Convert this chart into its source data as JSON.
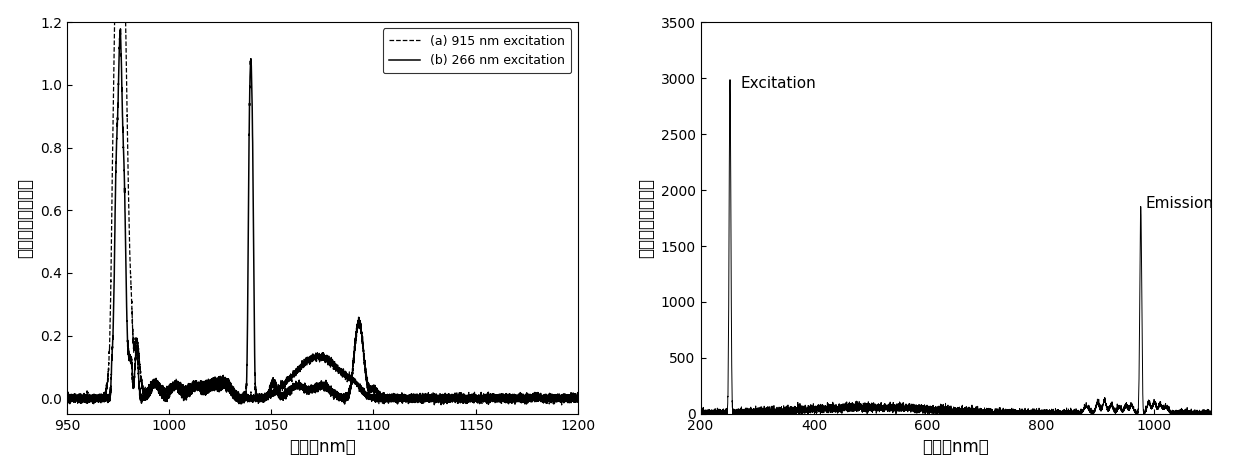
{
  "plot1": {
    "xlim": [
      950,
      1200
    ],
    "ylim": [
      -0.05,
      1.2
    ],
    "xticks": [
      950,
      1000,
      1050,
      1100,
      1150,
      1200
    ],
    "yticks": [
      0.0,
      0.2,
      0.4,
      0.6,
      0.8,
      1.0,
      1.2
    ],
    "xlabel": "波长（nm）",
    "ylabel": "强度（任意单位）",
    "legend_a": "(a) 915 nm excitation",
    "legend_b": "(b) 266 nm excitation"
  },
  "plot2": {
    "xlim": [
      200,
      1100
    ],
    "ylim": [
      0,
      3500
    ],
    "xticks": [
      200,
      400,
      600,
      800,
      1000
    ],
    "yticks": [
      0,
      500,
      1000,
      1500,
      2000,
      2500,
      3000,
      3500
    ],
    "xlabel": "波长（nm）",
    "ylabel": "强度（任意单位）",
    "label_excitation": "Excitation",
    "label_emission": "Emission"
  }
}
